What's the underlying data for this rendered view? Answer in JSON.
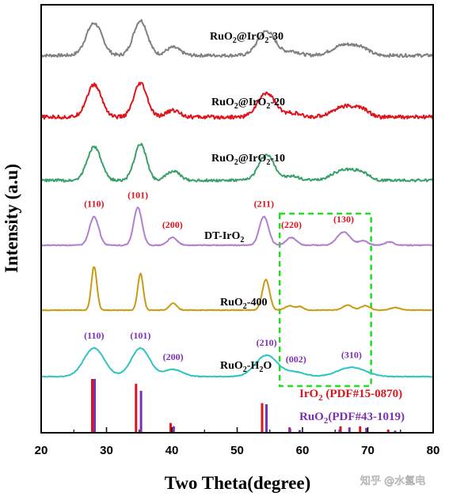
{
  "chart_data": {
    "type": "line",
    "xlabel": "Two Theta(degree)",
    "ylabel": "Intensity (a.u)",
    "xlim": [
      20,
      80
    ],
    "xticks": [
      "20",
      "30",
      "40",
      "50",
      "60",
      "70",
      "80"
    ],
    "series": [
      {
        "name": "RuO2@IrO2-30",
        "label_parts": [
          [
            "RuO",
            false
          ],
          [
            "2",
            true
          ],
          [
            "@IrO",
            false
          ],
          [
            "2",
            true
          ],
          [
            "-30",
            false
          ]
        ],
        "color": "#808080",
        "baseline": 1.0,
        "noise": 0.12,
        "peaks": [
          [
            28.1,
            2.4,
            1.7
          ],
          [
            35.2,
            2.6,
            1.5
          ],
          [
            40.2,
            0.6,
            1.5
          ],
          [
            54.5,
            1.8,
            1.9
          ],
          [
            58.5,
            0.3,
            1.5
          ],
          [
            66.5,
            0.8,
            2.6
          ],
          [
            69.2,
            0.4,
            1.5
          ]
        ]
      },
      {
        "name": "RuO2@IrO2-20",
        "label_parts": [
          [
            "RuO",
            false
          ],
          [
            "2",
            true
          ],
          [
            "@IrO",
            false
          ],
          [
            "2",
            true
          ],
          [
            "-20",
            false
          ]
        ],
        "color": "#e0131b",
        "baseline": 1.0,
        "noise": 0.14,
        "peaks": [
          [
            28.1,
            2.4,
            1.6
          ],
          [
            35.2,
            2.5,
            1.4
          ],
          [
            40.2,
            0.5,
            1.5
          ],
          [
            54.5,
            1.8,
            1.9
          ],
          [
            58.5,
            0.3,
            1.5
          ],
          [
            66.5,
            0.8,
            2.6
          ],
          [
            69.2,
            0.4,
            1.5
          ]
        ]
      },
      {
        "name": "RuO2@IrO2-10",
        "label_parts": [
          [
            "RuO",
            false
          ],
          [
            "2",
            true
          ],
          [
            "@IrO",
            false
          ],
          [
            "2",
            true
          ],
          [
            "-10",
            false
          ]
        ],
        "color": "#3aa06a",
        "baseline": 1.0,
        "noise": 0.1,
        "peaks": [
          [
            28.1,
            2.5,
            1.5
          ],
          [
            35.2,
            2.7,
            1.3
          ],
          [
            40.2,
            0.7,
            1.4
          ],
          [
            54.5,
            1.9,
            1.7
          ],
          [
            58.5,
            0.3,
            1.5
          ],
          [
            66.5,
            0.8,
            2.6
          ],
          [
            69.2,
            0.4,
            1.5
          ]
        ]
      },
      {
        "name": "DT-IrO2",
        "label_parts": [
          [
            "DT-IrO",
            false
          ],
          [
            "2",
            true
          ]
        ],
        "color": "#b07fd2",
        "baseline": 1.0,
        "noise": 0.04,
        "peaks": [
          [
            28.1,
            2.6,
            1.0
          ],
          [
            34.8,
            3.4,
            0.9
          ],
          [
            40.1,
            0.7,
            1.0
          ],
          [
            54.1,
            2.6,
            1.0
          ],
          [
            58.3,
            0.7,
            1.1
          ],
          [
            66.3,
            1.2,
            1.4
          ],
          [
            69.3,
            0.4,
            1.0
          ],
          [
            73.3,
            0.3,
            1.0
          ]
        ]
      },
      {
        "name": "RuO2-400",
        "label_parts": [
          [
            "RuO",
            false
          ],
          [
            "2",
            true
          ],
          [
            "-400",
            false
          ]
        ],
        "color": "#c99a14",
        "baseline": 1.0,
        "noise": 0.04,
        "peaks": [
          [
            28.1,
            5.0,
            0.6
          ],
          [
            35.2,
            4.2,
            0.6
          ],
          [
            40.2,
            0.8,
            0.8
          ],
          [
            54.4,
            3.5,
            0.8
          ],
          [
            58.0,
            0.5,
            0.9
          ],
          [
            59.6,
            0.4,
            0.8
          ],
          [
            66.9,
            0.6,
            1.0
          ],
          [
            69.6,
            0.5,
            1.0
          ],
          [
            74.2,
            0.3,
            1.0
          ]
        ]
      },
      {
        "name": "RuO2-H2O",
        "label_parts": [
          [
            "RuO",
            false
          ],
          [
            "2",
            true
          ],
          [
            "-H",
            false
          ],
          [
            "2",
            true
          ],
          [
            "O",
            false
          ]
        ],
        "color": "#2ec4c4",
        "baseline": 1.0,
        "noise": 0.05,
        "peaks": [
          [
            28.1,
            4.0,
            2.2
          ],
          [
            35.2,
            4.0,
            2.0
          ],
          [
            40.2,
            1.0,
            2.0
          ],
          [
            54.5,
            3.0,
            2.4
          ],
          [
            59.0,
            0.6,
            2.0
          ],
          [
            67.5,
            1.3,
            3.0
          ]
        ]
      }
    ],
    "peak_labels": [
      {
        "text": "(110)",
        "x": 28.1,
        "curve": "DT-IrO2",
        "color": "#e0131b"
      },
      {
        "text": "(101)",
        "x": 34.8,
        "curve": "DT-IrO2",
        "color": "#e0131b"
      },
      {
        "text": "(200)",
        "x": 40.1,
        "curve": "DT-IrO2",
        "color": "#e0131b"
      },
      {
        "text": "(211)",
        "x": 54.1,
        "curve": "DT-IrO2",
        "color": "#e0131b"
      },
      {
        "text": "(220)",
        "x": 58.3,
        "curve": "DT-IrO2",
        "color": "#e0131b"
      },
      {
        "text": "(130)",
        "x": 66.3,
        "curve": "DT-IrO2",
        "color": "#e0131b"
      },
      {
        "text": "(110)",
        "x": 28.1,
        "curve": "RuO2-H2O",
        "color": "#7d2fb8"
      },
      {
        "text": "(101)",
        "x": 35.2,
        "curve": "RuO2-H2O",
        "color": "#7d2fb8"
      },
      {
        "text": "(200)",
        "x": 40.2,
        "curve": "RuO2-H2O",
        "color": "#7d2fb8"
      },
      {
        "text": "(210)",
        "x": 54.5,
        "curve": "RuO2-H2O",
        "color": "#7d2fb8"
      },
      {
        "text": "(002)",
        "x": 59.0,
        "curve": "RuO2-H2O",
        "color": "#7d2fb8"
      },
      {
        "text": "(310)",
        "x": 67.5,
        "curve": "RuO2-H2O",
        "color": "#7d2fb8"
      }
    ],
    "reference_patterns": [
      {
        "name": "IrO2 (PDF#15-0870)",
        "label_parts": [
          [
            "IrO",
            false
          ],
          [
            "2",
            true
          ],
          [
            "  (PDF#15-0870)",
            false
          ]
        ],
        "color": "#e0131b",
        "sticks": [
          [
            28.0,
            100
          ],
          [
            34.7,
            91
          ],
          [
            40.0,
            18
          ],
          [
            54.0,
            55
          ],
          [
            58.2,
            10
          ],
          [
            66.0,
            12
          ],
          [
            69.0,
            12
          ],
          [
            73.3,
            6
          ]
        ]
      },
      {
        "name": "RuO2 (PDF#43-1019)",
        "label_parts": [
          [
            "RuO",
            false
          ],
          [
            "2",
            true
          ],
          [
            "(PDF#43-1019)",
            false
          ]
        ],
        "color": "#7d2fb8",
        "sticks": [
          [
            28.0,
            100
          ],
          [
            35.1,
            78
          ],
          [
            40.1,
            12
          ],
          [
            54.3,
            53
          ],
          [
            57.9,
            8
          ],
          [
            59.4,
            5
          ],
          [
            65.5,
            6
          ],
          [
            67.0,
            10
          ],
          [
            69.6,
            9
          ],
          [
            74.0,
            4
          ]
        ]
      }
    ],
    "highlight_box": {
      "x_range": [
        56.5,
        70.5
      ],
      "color": "#22dd22",
      "style": "dashed"
    },
    "grid": false,
    "legend": "none"
  },
  "watermark": "知乎 @水氢电"
}
